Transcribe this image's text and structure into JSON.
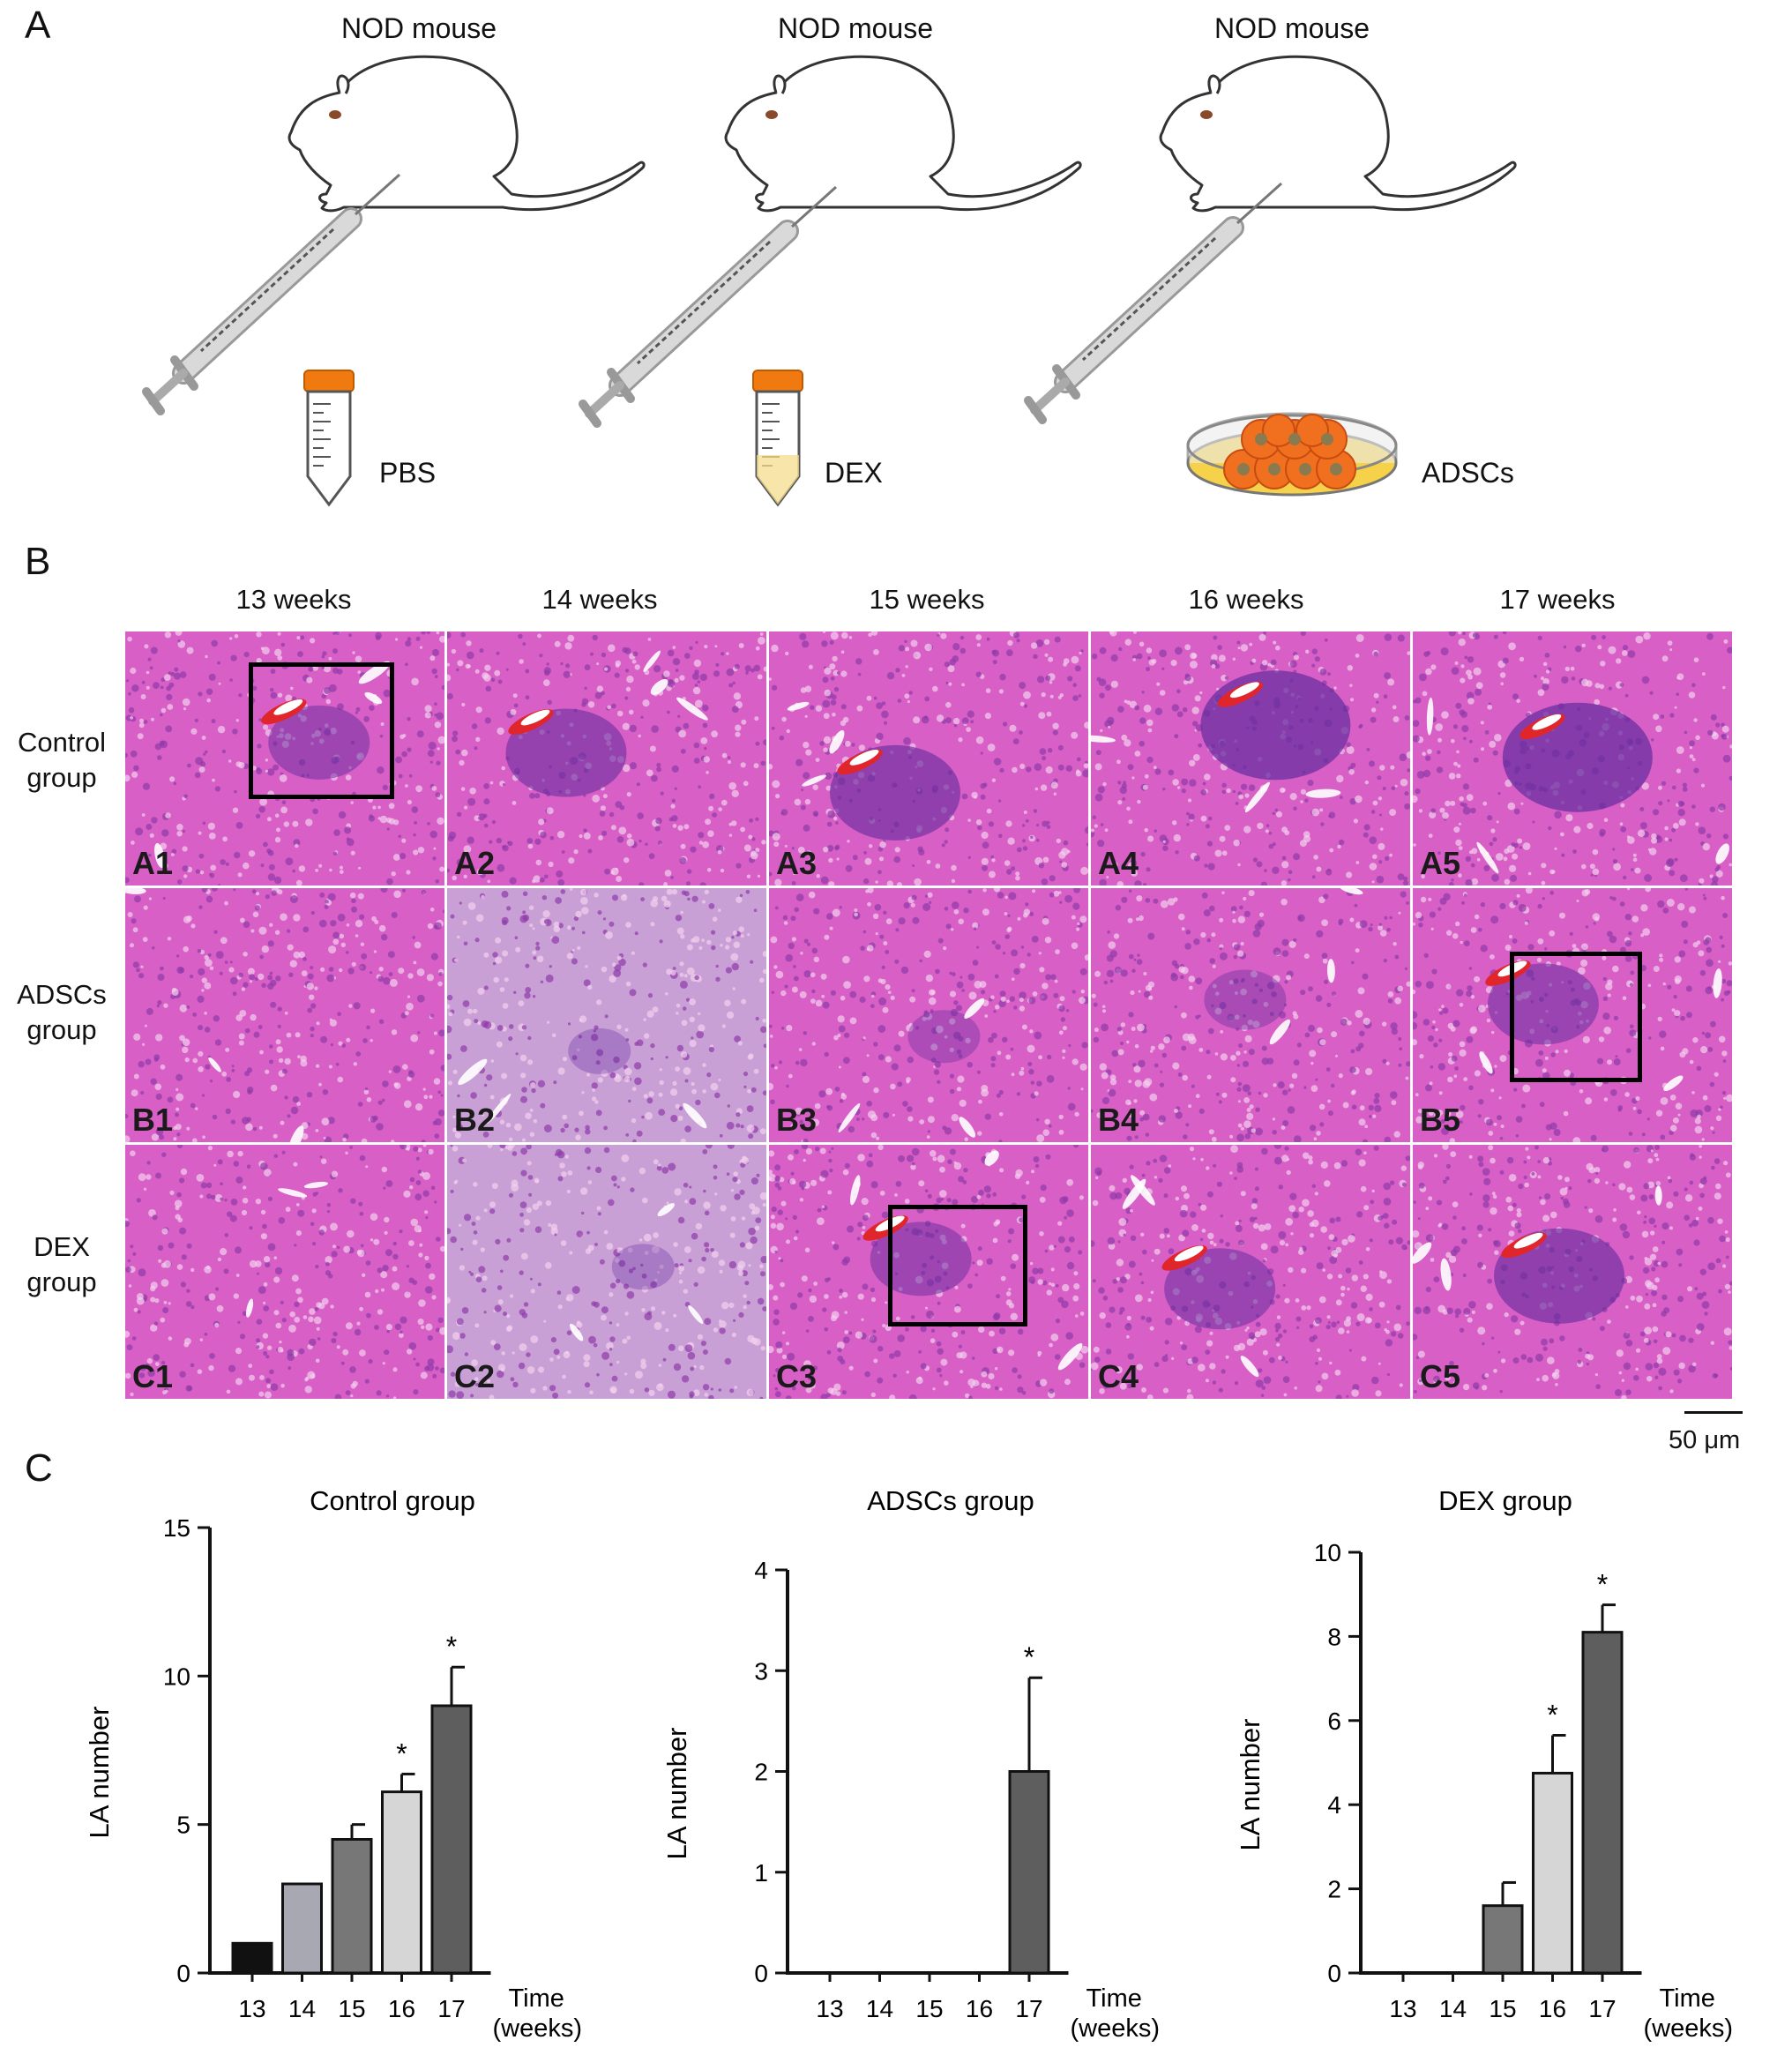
{
  "panel_letters": {
    "a": "A",
    "b": "B",
    "c": "C"
  },
  "schematic": {
    "groups": [
      {
        "mouse_label": "NOD mouse",
        "agent": "PBS"
      },
      {
        "mouse_label": "NOD mouse",
        "agent": "DEX"
      },
      {
        "mouse_label": "NOD mouse",
        "agent": "ADSCs"
      }
    ]
  },
  "histology": {
    "week_labels": [
      "13 weeks",
      "14 weeks",
      "15 weeks",
      "16 weeks",
      "17 weeks"
    ],
    "row_labels": [
      [
        "Control",
        "group"
      ],
      [
        "ADSCs",
        "group"
      ],
      [
        "DEX",
        "group"
      ]
    ],
    "tiles": [
      [
        "A1",
        "A2",
        "A3",
        "A4",
        "A5"
      ],
      [
        "B1",
        "B2",
        "B3",
        "B4",
        "B5"
      ],
      [
        "C1",
        "C2",
        "C3",
        "C4",
        "C5"
      ]
    ],
    "scale_bar": "50 μm",
    "colors": {
      "tissue": "#d85fc6",
      "purple": "#6a2fa0",
      "blood": "#e0262b"
    }
  },
  "chart_data": [
    {
      "type": "bar",
      "title": "Control group",
      "xlabel": [
        "Time",
        "(weeks)"
      ],
      "ylabel": "LA number",
      "categories": [
        "13",
        "14",
        "15",
        "16",
        "17"
      ],
      "values": [
        1.0,
        3.0,
        4.5,
        6.1,
        9.0
      ],
      "errors": [
        0,
        0,
        0.5,
        0.6,
        1.3
      ],
      "significance": [
        "",
        "",
        "",
        "*",
        "*"
      ],
      "ylim": [
        0,
        15
      ],
      "yticks": [
        0,
        5,
        10,
        15
      ],
      "bar_colors": [
        "#111111",
        "#a8a8b2",
        "#777777",
        "#d6d6d6",
        "#5e5e5e"
      ]
    },
    {
      "type": "bar",
      "title": "ADSCs group",
      "xlabel": [
        "Time",
        "(weeks)"
      ],
      "ylabel": "LA number",
      "categories": [
        "13",
        "14",
        "15",
        "16",
        "17"
      ],
      "values": [
        0,
        0,
        0,
        0,
        2.0
      ],
      "errors": [
        0,
        0,
        0,
        0,
        0.93
      ],
      "significance": [
        "",
        "",
        "",
        "",
        "*"
      ],
      "ylim": [
        0,
        4
      ],
      "yticks": [
        0,
        1,
        2,
        3,
        4
      ],
      "bar_colors": [
        "#111111",
        "#a8a8b2",
        "#777777",
        "#d6d6d6",
        "#5e5e5e"
      ]
    },
    {
      "type": "bar",
      "title": "DEX group",
      "xlabel": [
        "Time",
        "(weeks)"
      ],
      "ylabel": "LA number",
      "categories": [
        "13",
        "14",
        "15",
        "16",
        "17"
      ],
      "values": [
        0,
        0,
        1.6,
        4.75,
        8.1
      ],
      "errors": [
        0,
        0,
        0.55,
        0.9,
        0.65
      ],
      "significance": [
        "",
        "",
        "",
        "*",
        "*"
      ],
      "ylim": [
        0,
        10
      ],
      "yticks": [
        0,
        2,
        4,
        6,
        8,
        10
      ],
      "bar_colors": [
        "#111111",
        "#a8a8b2",
        "#777777",
        "#d6d6d6",
        "#5e5e5e"
      ]
    }
  ]
}
